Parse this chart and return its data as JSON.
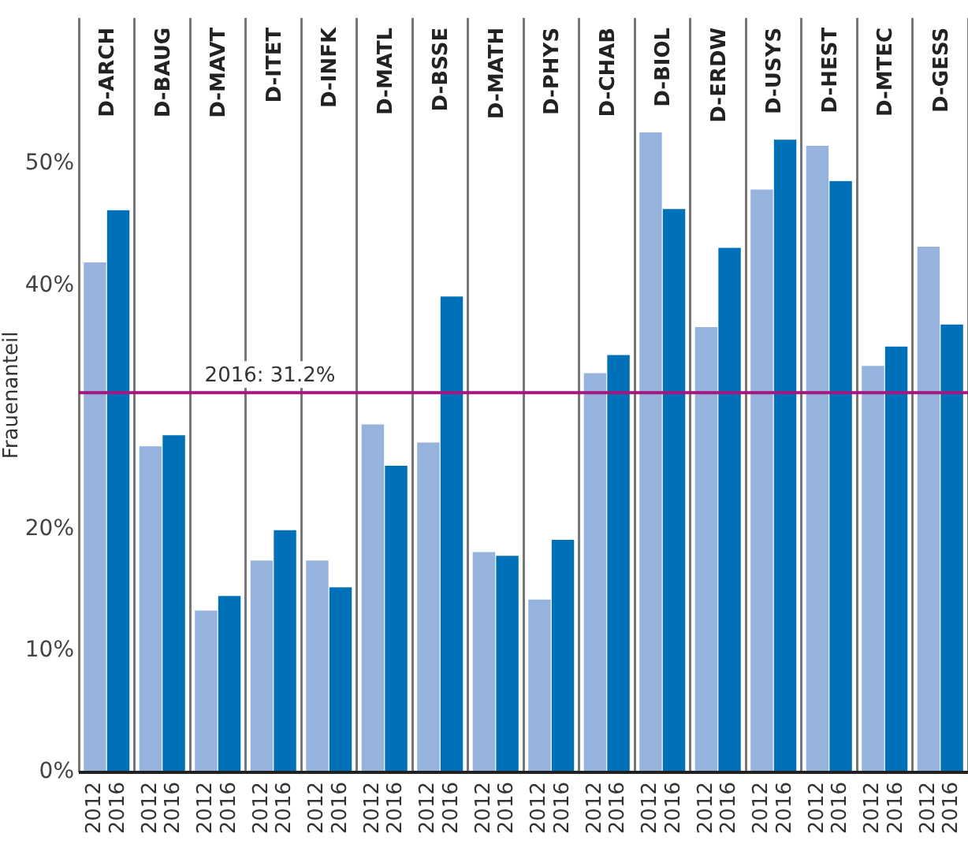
{
  "chart_data": {
    "type": "bar",
    "ylabel": "Frauenanteil",
    "categories": [
      "D-ARCH",
      "D-BAUG",
      "D-MAVT",
      "D-ITET",
      "D-INFK",
      "D-MATL",
      "D-BSSE",
      "D-MATH",
      "D-PHYS",
      "D-CHAB",
      "D-BIOL",
      "D-ERDW",
      "D-USYS",
      "D-HEST",
      "D-MTEC",
      "D-GESS"
    ],
    "series": [
      {
        "name": "2012",
        "color": "#95b3dc",
        "values": [
          41.9,
          26.8,
          13.3,
          17.4,
          17.4,
          28.6,
          27.1,
          18.1,
          14.2,
          32.8,
          52.6,
          36.6,
          47.9,
          51.5,
          33.4,
          43.2
        ]
      },
      {
        "name": "2016",
        "color": "#0070b9",
        "values": [
          46.2,
          27.7,
          14.5,
          19.9,
          15.2,
          25.2,
          39.1,
          17.8,
          19.1,
          34.3,
          46.3,
          43.1,
          52.0,
          48.6,
          35.0,
          36.8
        ]
      }
    ],
    "ylim": [
      0,
      62
    ],
    "yticks": [
      {
        "value": 0,
        "label": "0%"
      },
      {
        "value": 10,
        "label": "10%"
      },
      {
        "value": 20,
        "label": "20%"
      },
      {
        "value": 40,
        "label": "40%"
      },
      {
        "value": 50,
        "label": "50%"
      }
    ],
    "ref_lines": [
      {
        "axis": "y",
        "value": 31.2,
        "label": "2016: 31.2%",
        "color": "#a3177f"
      }
    ],
    "grid": "x",
    "legend": false
  }
}
